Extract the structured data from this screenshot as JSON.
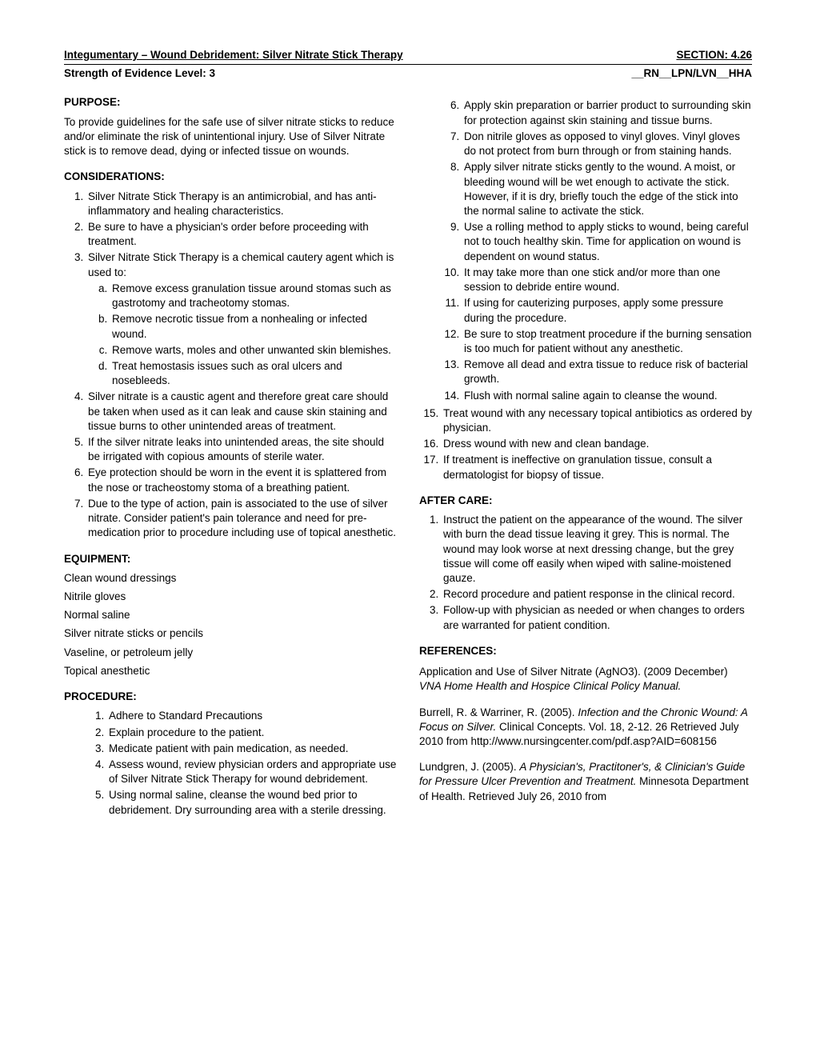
{
  "header": {
    "title_left": "Integumentary – Wound Debridement: Silver Nitrate Stick Therapy",
    "title_right": "SECTION: 4.26",
    "sub_left": "Strength of Evidence Level: 3",
    "sub_right": "__RN__LPN/LVN__HHA"
  },
  "purpose": {
    "heading": "PURPOSE:",
    "text": "To provide guidelines for the safe use of silver nitrate sticks to reduce and/or eliminate the risk of unintentional injury. Use of Silver Nitrate stick is to remove dead, dying or infected tissue on wounds."
  },
  "considerations": {
    "heading": "CONSIDERATIONS:",
    "items": [
      "Silver Nitrate Stick Therapy is an antimicrobial, and has anti-inflammatory and healing characteristics.",
      "Be sure to have a physician's order before proceeding with treatment.",
      "Silver Nitrate Stick Therapy is a chemical cautery agent which is used to:",
      "Silver nitrate is a caustic agent and therefore great care should be taken when used as it can leak and cause skin staining and tissue burns to other unintended areas of treatment.",
      "If the silver nitrate leaks into unintended areas, the site should be irrigated with copious amounts of sterile water.",
      "Eye protection should be worn in the event it is splattered from the nose or tracheostomy stoma of a breathing patient.",
      "Due to the type of action, pain is associated to the use of silver nitrate. Consider patient's pain tolerance and need for pre-medication prior to procedure including use of topical anesthetic."
    ],
    "sub3": [
      "Remove excess granulation tissue around stomas such as gastrotomy and tracheotomy stomas.",
      "Remove necrotic tissue from a nonhealing or infected wound.",
      "Remove warts, moles and other unwanted skin blemishes.",
      "Treat hemostasis issues such as oral ulcers and nosebleeds."
    ]
  },
  "equipment": {
    "heading": "EQUIPMENT:",
    "items": [
      "Clean wound dressings",
      "Nitrile gloves",
      "Normal saline",
      "Silver nitrate sticks or pencils",
      "Vaseline, or petroleum jelly",
      "Topical anesthetic"
    ]
  },
  "procedure": {
    "heading": "PROCEDURE:",
    "left_items": [
      "Adhere to Standard Precautions",
      "Explain procedure to the patient.",
      "Medicate patient with pain medication, as needed.",
      "Assess wound, review physician orders and appropriate use of Silver Nitrate Stick Therapy for wound debridement.",
      "Using normal saline, cleanse the wound bed prior to debridement. Dry surrounding area with a sterile dressing."
    ],
    "right_items_a": [
      "Apply skin preparation or barrier product to surrounding skin for protection against skin staining and tissue burns.",
      "Don nitrile gloves as opposed to vinyl gloves. Vinyl gloves do not protect from burn through or from staining hands.",
      "Apply silver nitrate sticks gently to the wound. A moist, or bleeding wound will be wet enough to activate the stick. However, if it is dry, briefly touch the edge of the stick into the normal saline to activate the stick.",
      "Use a rolling method to apply sticks to wound, being careful not to touch healthy skin. Time for application on wound is dependent on wound status.",
      "It may take more than one stick and/or more than one session to debride entire wound.",
      "If using for cauterizing purposes, apply some pressure during the procedure.",
      "Be sure to stop treatment procedure if the burning sensation is too much for patient without any anesthetic.",
      "Remove all dead and extra tissue to reduce risk of bacterial growth.",
      "Flush with normal saline again to cleanse the wound."
    ],
    "right_items_b": [
      "Treat wound with any necessary topical antibiotics as ordered by physician.",
      "Dress wound with new and clean bandage.",
      "If treatment is ineffective on granulation tissue, consult a dermatologist for biopsy of tissue."
    ]
  },
  "aftercare": {
    "heading": "AFTER CARE:",
    "items": [
      "Instruct the patient on the appearance of the wound. The silver with burn the dead tissue leaving it grey. This is normal. The wound may look worse at next dressing change, but the grey tissue will come off easily when wiped with saline-moistened gauze.",
      "Record procedure and patient response in the clinical record.",
      "Follow-up with physician as needed or when changes to orders are warranted for patient condition."
    ]
  },
  "references": {
    "heading": "REFERENCES:",
    "ref1_a": "Application and Use of  Silver Nitrate (AgNO3). (2009 December) ",
    "ref1_b": "VNA Home Health and Hospice Clinical Policy Manual.",
    "ref2_a": "Burrell, R. & Warriner, R. (2005). ",
    "ref2_b": "Infection and the Chronic Wound: A Focus on Silver.",
    "ref2_c": " Clinical Concepts. Vol. 18, 2-12. 26 Retrieved July 2010 from http://www.nursingcenter.com/pdf.asp?AID=608156",
    "ref3_a": "Lundgren, J. (2005). ",
    "ref3_b": "A Physician's, Practitoner's, & Clinician's Guide for Pressure Ulcer Prevention and Treatment.",
    "ref3_c": " Minnesota Department of Health. Retrieved July 26, 2010 from"
  }
}
